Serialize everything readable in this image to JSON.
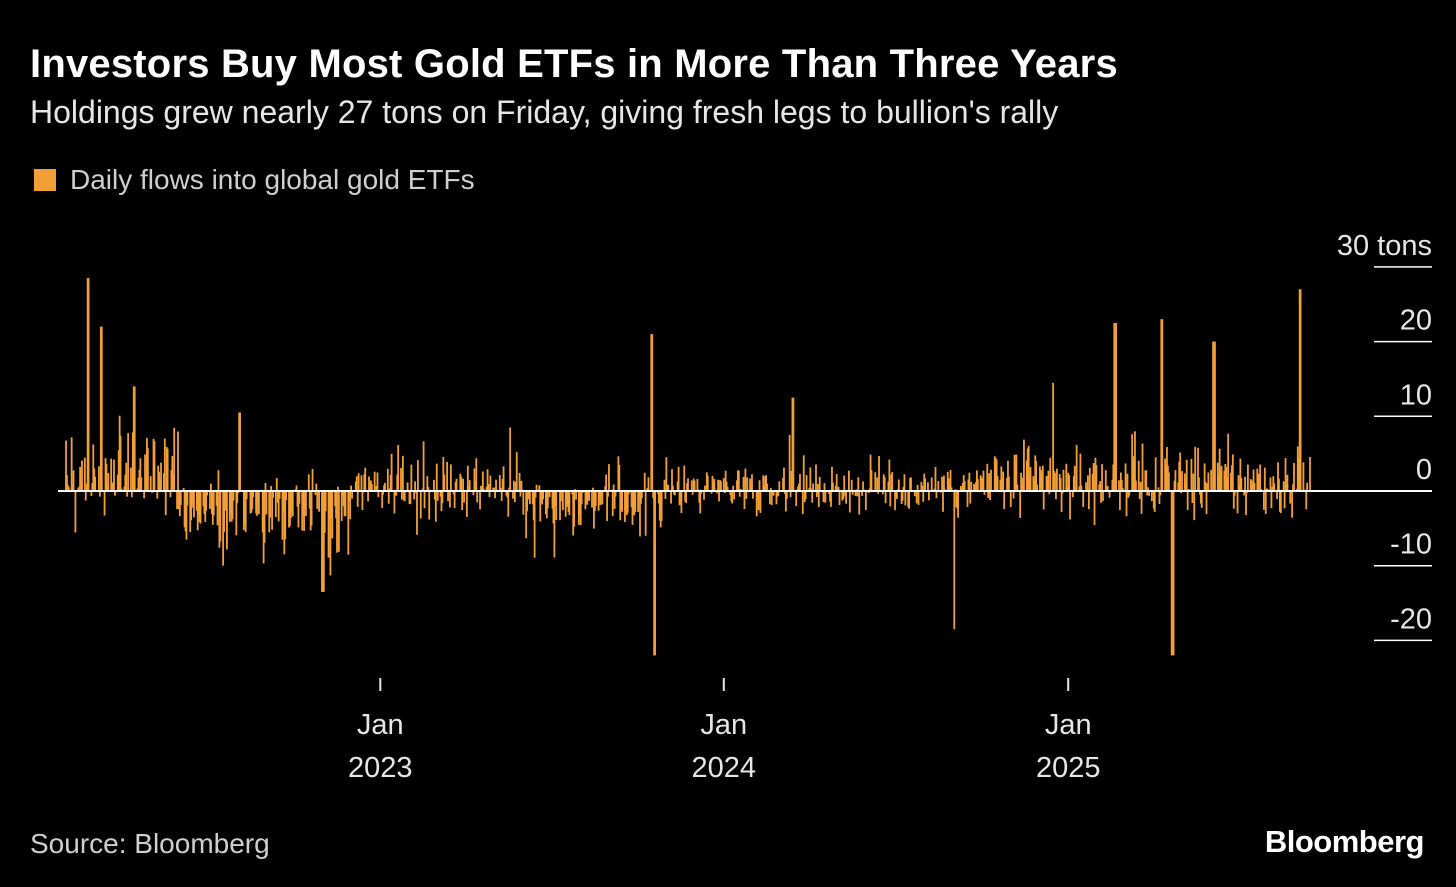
{
  "title": "Investors Buy Most Gold ETFs in More Than Three Years",
  "subtitle": "Holdings grew nearly 27 tons on Friday, giving fresh legs to bullion's rally",
  "legend": {
    "label": "Daily flows into global gold ETFs",
    "color": "#f29f38"
  },
  "source": "Source: Bloomberg",
  "logo": "Bloomberg",
  "colors": {
    "background": "#000000",
    "bar": "#f29f38",
    "zero_line": "#ffffff",
    "grid": "#ffffff"
  },
  "chart_data": {
    "type": "bar",
    "title": "Investors Buy Most Gold ETFs in More Than Three Years",
    "subtitle": "Holdings grew nearly 27 tons on Friday, giving fresh legs to bullion's rally",
    "ylabel": "tons",
    "y_unit_label": "30 tons",
    "ylim": [
      -22,
      30
    ],
    "y_ticks": [
      30,
      20,
      10,
      0,
      -10,
      -20
    ],
    "y_tick_labels": [
      "30 tons",
      "20",
      "10",
      "0",
      "-10",
      "-20"
    ],
    "x_range": [
      "2022-02-01",
      "2025-09-15"
    ],
    "x_ticks": [
      {
        "date": "2023-01-01",
        "label": [
          "Jan",
          "2023"
        ]
      },
      {
        "date": "2024-01-01",
        "label": [
          "Jan",
          "2024"
        ]
      },
      {
        "date": "2025-01-01",
        "label": [
          "Jan",
          "2025"
        ]
      }
    ],
    "frequency": "daily (trading days)",
    "series": [
      {
        "name": "Daily flows into global gold ETFs",
        "peak_values": [
          {
            "date": "2022-02-25",
            "value": 28.5
          },
          {
            "date": "2022-03-11",
            "value": 22.0
          },
          {
            "date": "2022-04-15",
            "value": 14.0
          },
          {
            "date": "2022-08-05",
            "value": 10.5
          },
          {
            "date": "2022-11-01",
            "value": -13.5
          },
          {
            "date": "2023-05-20",
            "value": 8.5
          },
          {
            "date": "2023-10-16",
            "value": 21.0
          },
          {
            "date": "2023-10-20",
            "value": -22.5
          },
          {
            "date": "2024-03-15",
            "value": 12.5
          },
          {
            "date": "2024-09-01",
            "value": -18.5
          },
          {
            "date": "2024-12-15",
            "value": 14.5
          },
          {
            "date": "2025-02-20",
            "value": 22.5
          },
          {
            "date": "2025-04-11",
            "value": 23.0
          },
          {
            "date": "2025-04-22",
            "value": -22.5
          },
          {
            "date": "2025-06-05",
            "value": 20.0
          },
          {
            "date": "2025-09-05",
            "value": 27.0
          }
        ]
      }
    ]
  }
}
